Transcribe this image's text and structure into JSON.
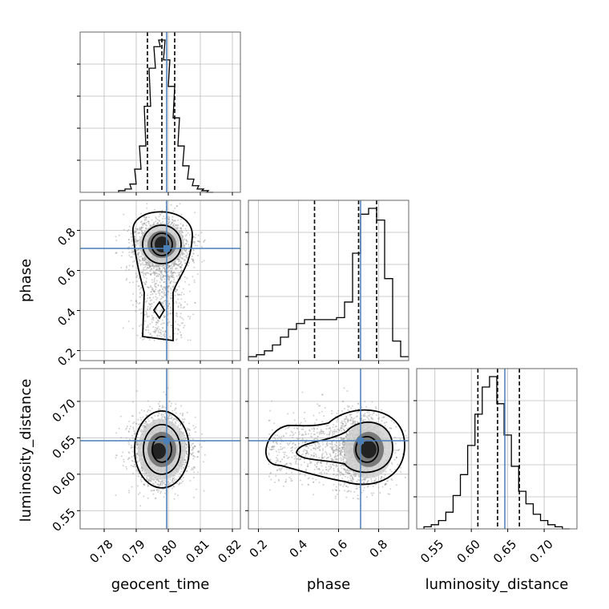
{
  "chart_data": {
    "type": "corner",
    "parameters": [
      "geocent_time",
      "phase",
      "luminosity_distance"
    ],
    "truths": {
      "geocent_time": 0.7995,
      "phase": 0.71,
      "luminosity_distance": 0.646
    },
    "truth_color": "#4a7fb8",
    "quantiles": {
      "geocent_time": [
        0.7935,
        0.798,
        0.802
      ],
      "phase": [
        0.48,
        0.7,
        0.79
      ],
      "luminosity_distance": [
        0.609,
        0.636,
        0.666
      ]
    },
    "axes": {
      "geocent_time": {
        "range": [
          0.7725,
          0.8225
        ],
        "ticks": [
          0.78,
          0.79,
          0.8,
          0.81,
          0.82
        ],
        "tick_labels": [
          "0.78",
          "0.79",
          "0.80",
          "0.81",
          "0.82"
        ]
      },
      "phase": {
        "range": [
          0.15,
          0.95
        ],
        "ticks": [
          0.2,
          0.4,
          0.6,
          0.8
        ],
        "tick_labels": [
          "0.2",
          "0.4",
          "0.6",
          "0.8"
        ]
      },
      "luminosity_distance": {
        "range": [
          0.525,
          0.745
        ],
        "ticks": [
          0.55,
          0.6,
          0.65,
          0.7
        ],
        "tick_labels": [
          "0.55",
          "0.60",
          "0.65",
          "0.70"
        ]
      }
    },
    "diagonal": {
      "geocent_time": {
        "x": [
          0.7855,
          0.7875,
          0.789,
          0.7905,
          0.792,
          0.7935,
          0.795,
          0.7965,
          0.798,
          0.7995,
          0.801,
          0.8025,
          0.804,
          0.8055,
          0.807,
          0.8085,
          0.81,
          0.8115,
          0.813
        ],
        "values": [
          1,
          2,
          5,
          14,
          28,
          52,
          75,
          88,
          92,
          80,
          64,
          45,
          28,
          16,
          8,
          4,
          2,
          1,
          0
        ]
      },
      "phase": {
        "x": [
          0.17,
          0.21,
          0.25,
          0.29,
          0.33,
          0.37,
          0.41,
          0.45,
          0.49,
          0.53,
          0.57,
          0.61,
          0.65,
          0.69,
          0.73,
          0.77,
          0.81,
          0.85,
          0.89,
          0.93
        ],
        "values": [
          2,
          3,
          5,
          8,
          12,
          16,
          19,
          21,
          21,
          21,
          21,
          22,
          30,
          55,
          75,
          78,
          72,
          42,
          10,
          2
        ]
      },
      "luminosity_distance": {
        "x": [
          0.54,
          0.55,
          0.56,
          0.57,
          0.58,
          0.59,
          0.6,
          0.61,
          0.62,
          0.63,
          0.64,
          0.65,
          0.66,
          0.67,
          0.68,
          0.69,
          0.7,
          0.71,
          0.72,
          0.73
        ],
        "values": [
          1,
          2,
          4,
          8,
          16,
          26,
          40,
          55,
          68,
          73,
          60,
          45,
          30,
          18,
          12,
          7,
          4,
          2,
          1,
          0
        ]
      }
    },
    "contour_levels": 3,
    "labels": {
      "x": [
        "geocent_time",
        "phase",
        "luminosity_distance"
      ],
      "y": [
        "phase",
        "luminosity_distance"
      ]
    }
  }
}
